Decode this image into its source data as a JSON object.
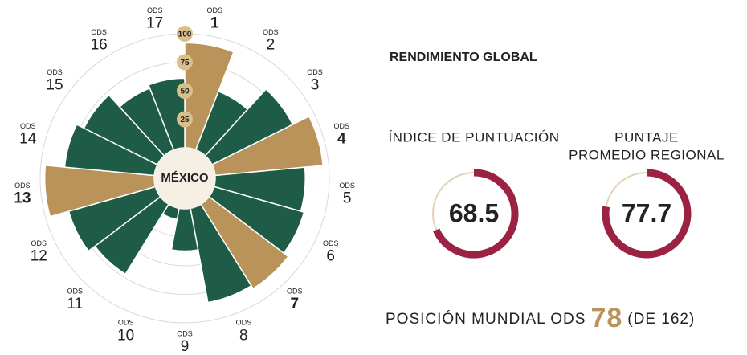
{
  "chart_data": [
    {
      "type": "radial_bar",
      "center_label": "MÉXICO",
      "category_prefix": "ODS",
      "categories": [
        "1",
        "2",
        "3",
        "4",
        "5",
        "6",
        "7",
        "8",
        "9",
        "10",
        "11",
        "12",
        "13",
        "14",
        "15",
        "16",
        "17"
      ],
      "values": [
        92,
        55,
        79,
        95,
        79,
        82,
        87,
        84,
        37,
        10,
        72,
        79,
        96,
        79,
        72,
        58,
        61
      ],
      "colors": [
        "#b9935a",
        "#1f5c48",
        "#1f5c48",
        "#b9935a",
        "#1f5c48",
        "#1f5c48",
        "#b9935a",
        "#1f5c48",
        "#1f5c48",
        "#1f5c48",
        "#1f5c48",
        "#1f5c48",
        "#b9935a",
        "#1f5c48",
        "#1f5c48",
        "#1f5c48",
        "#1f5c48"
      ],
      "label_colors": [
        "#9b2242",
        "#222222",
        "#222222",
        "#9b2242",
        "#222222",
        "#222222",
        "#9b2242",
        "#222222",
        "#222222",
        "#222222",
        "#222222",
        "#222222",
        "#9b2242",
        "#222222",
        "#222222",
        "#222222",
        "#222222"
      ],
      "ylim": [
        0,
        100
      ],
      "yticks": [
        25,
        50,
        75,
        100
      ],
      "grid": true
    },
    {
      "type": "gauge",
      "title": [
        "ÍNDICE DE PUNTUACIÓN"
      ],
      "value": 68.5,
      "ylim": [
        0,
        100
      ],
      "color": "#9b2242",
      "track_color": "#e2d2b4"
    },
    {
      "type": "gauge",
      "title": [
        "PUNTAJE",
        "PROMEDIO REGIONAL"
      ],
      "value": 77.7,
      "ylim": [
        0,
        100
      ],
      "color": "#9b2242",
      "track_color": "#e2d2b4"
    }
  ],
  "panel": {
    "heading": "RENDIMIENTO GLOBAL",
    "rank_prefix": "POSICIÓN MUNDIAL ODS",
    "rank": "78",
    "rank_suffix": "(DE 162)"
  }
}
